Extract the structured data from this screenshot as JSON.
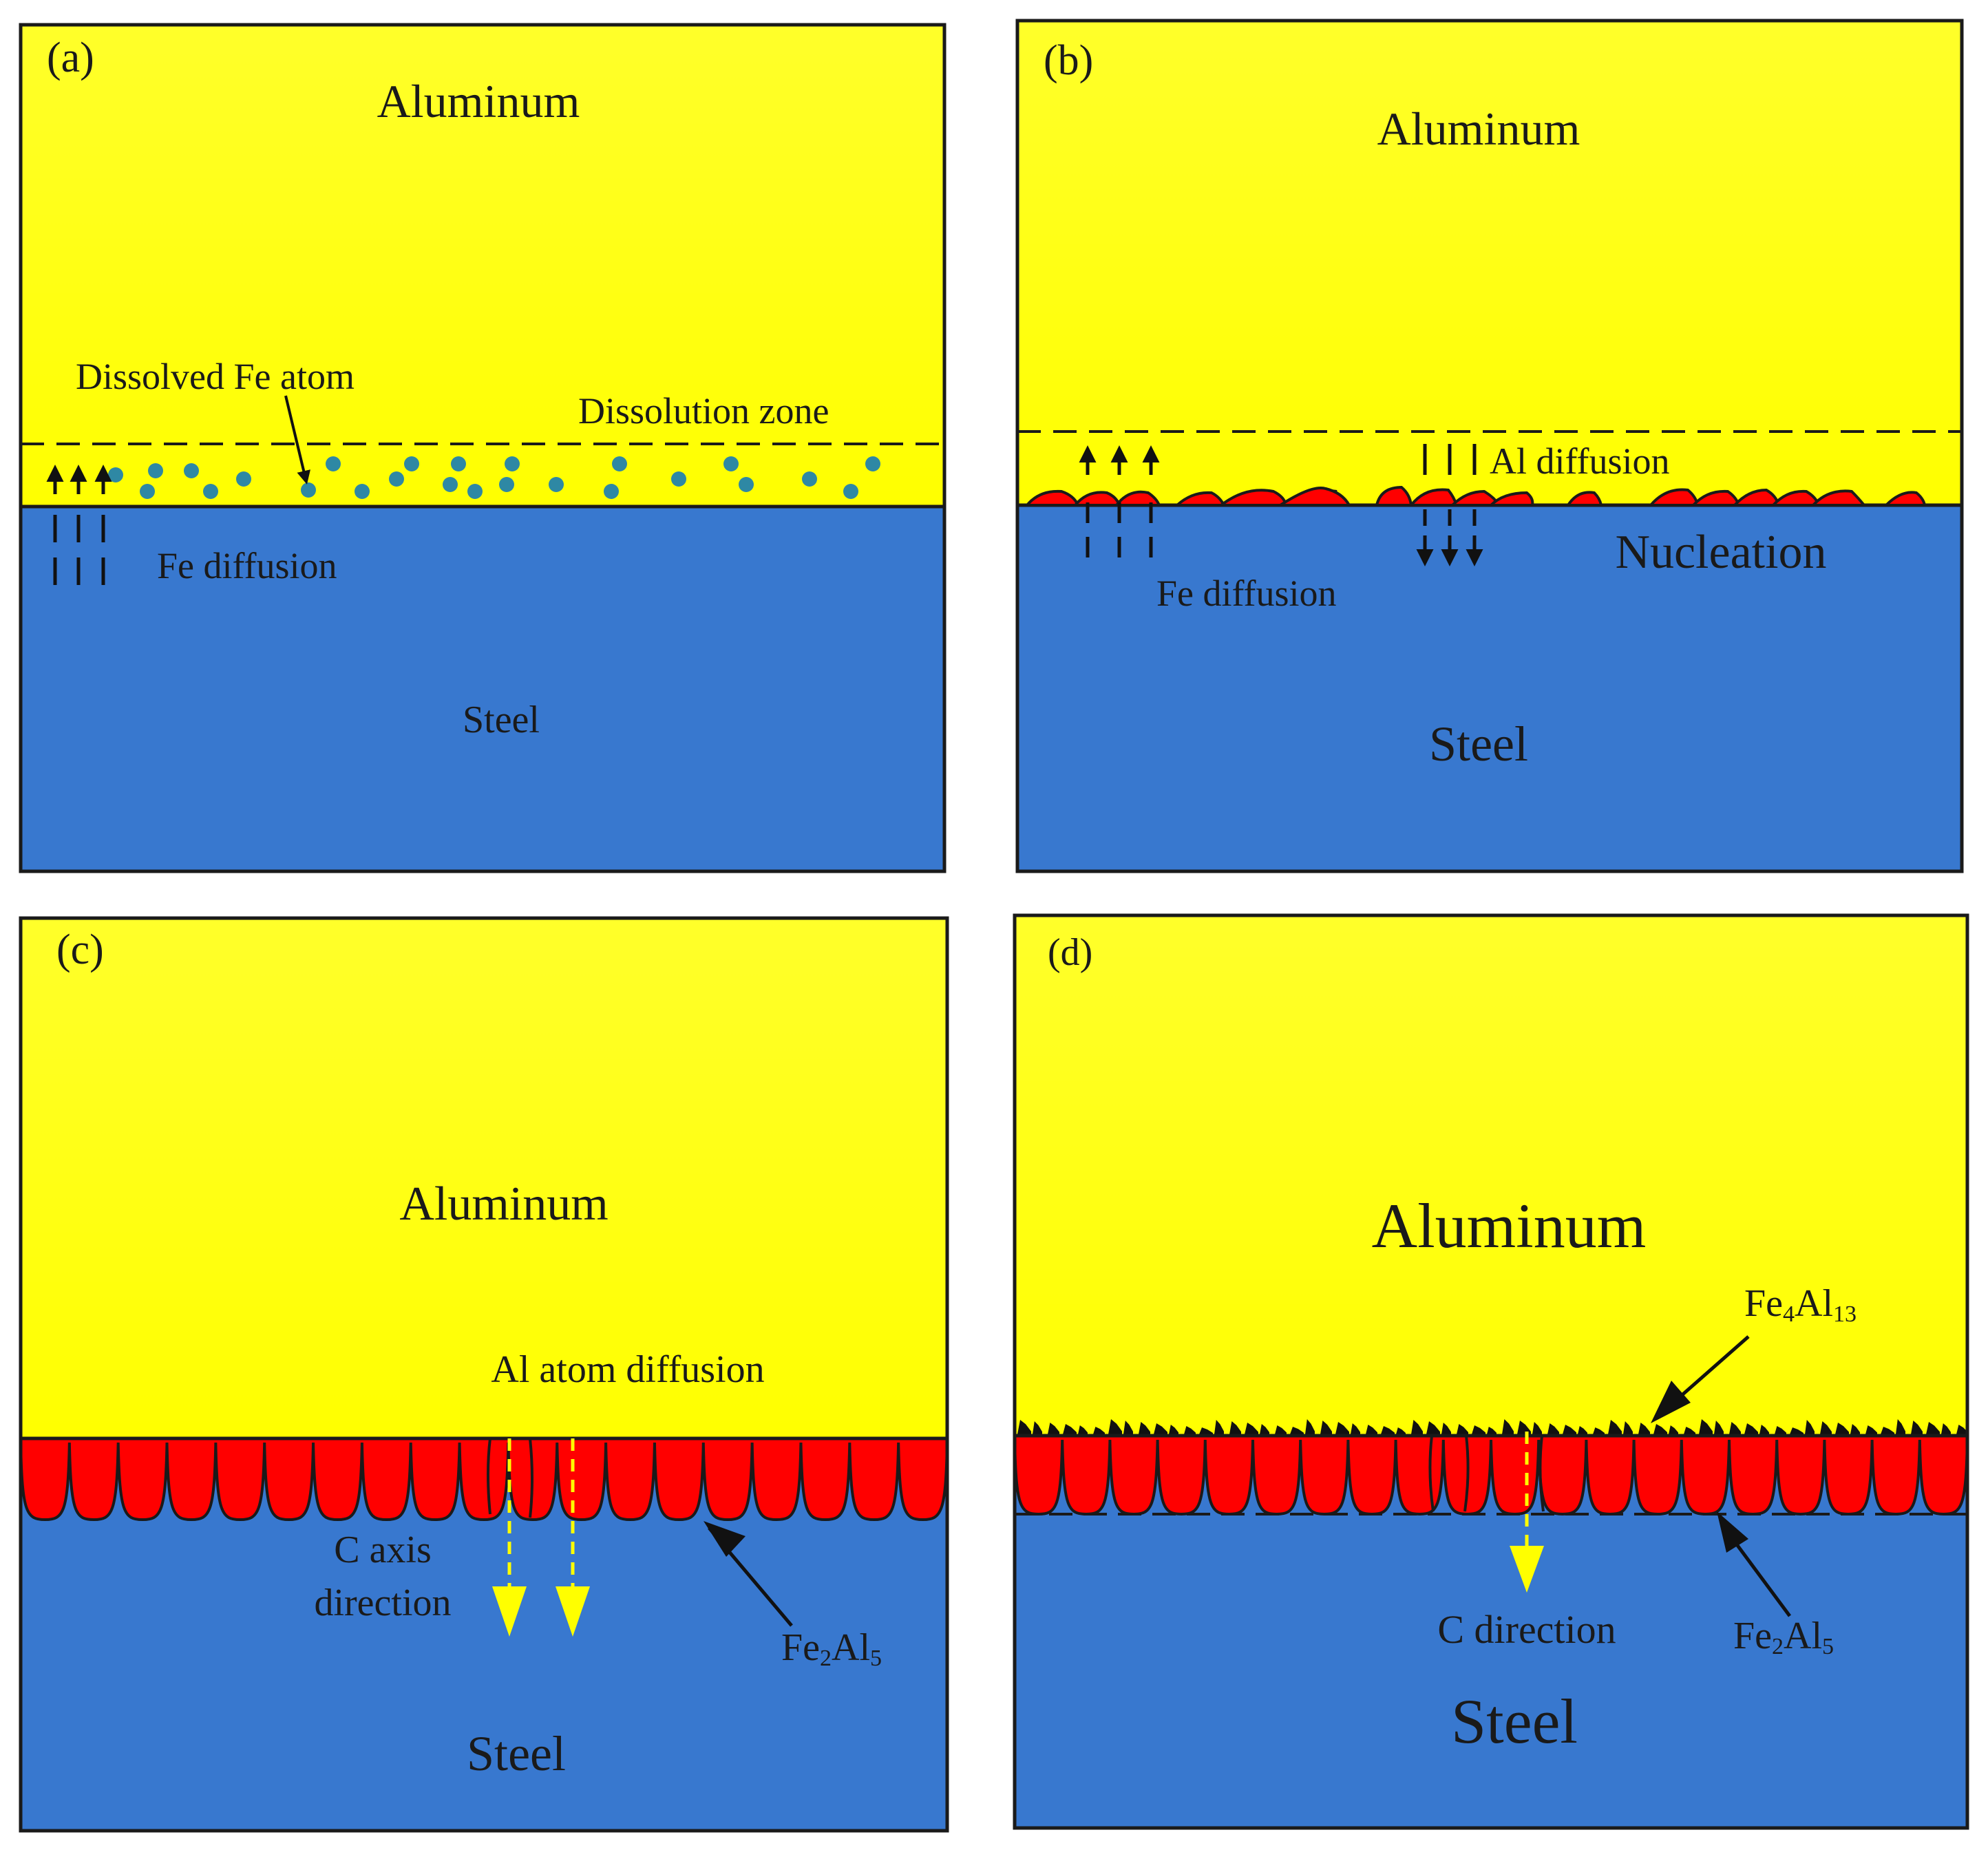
{
  "colors": {
    "aluminum": "#ffff00",
    "aluminum_top": "#ffff28",
    "steel": "#3878cf",
    "intermetallic": "#ff0000",
    "fe_atom": "#2e88a4",
    "outline": "#1a1a1a",
    "arrow_yellow": "#ffff00"
  },
  "panels": {
    "a": {
      "tag": "(a)",
      "aluminum_label": "Aluminum",
      "steel_label": "Steel",
      "dissolved_label": "Dissolved Fe atom",
      "zone_label": "Dissolution zone",
      "fe_diffusion_label": "Fe diffusion"
    },
    "b": {
      "tag": "(b)",
      "aluminum_label": "Aluminum",
      "steel_label": "Steel",
      "al_diffusion_label": "Al diffusion",
      "nucleation_label": "Nucleation",
      "fe_diffusion_label": "Fe diffusion"
    },
    "c": {
      "tag": "(c)",
      "aluminum_label": "Aluminum",
      "steel_label": "Steel",
      "al_atom_label": "Al atom diffusion",
      "c_axis_label_1": "C axis",
      "c_axis_label_2": "direction",
      "phase_label": {
        "base1": "Fe",
        "sub1": "2",
        "base2": "Al",
        "sub2": "5"
      }
    },
    "d": {
      "tag": "(d)",
      "aluminum_label": "Aluminum",
      "steel_label": "Steel",
      "c_direction_label": "C direction",
      "top_phase_label": {
        "base1": "Fe",
        "sub1": "4",
        "base2": "Al",
        "sub2": "13"
      },
      "phase_label": {
        "base1": "Fe",
        "sub1": "2",
        "base2": "Al",
        "sub2": "5"
      }
    }
  }
}
